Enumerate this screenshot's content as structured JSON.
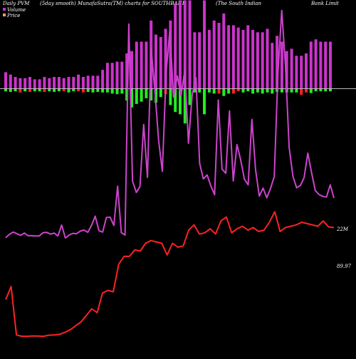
{
  "header": {
    "left": "Daily PVM",
    "smooth": "(5day smooth) MunafaSutra(TM) charts for SOUTHBANK",
    "name_a": "(The South Indian",
    "name_b": "Bank Limit"
  },
  "legend": {
    "volume_label": "Volume",
    "price_label": "Price",
    "volume_color": "#cc33cc",
    "price_color": "#ff9966"
  },
  "colors": {
    "background": "#000000",
    "volume_bar": "#cc33cc",
    "volume_line": "#cc44cc",
    "price_line": "#ff2222",
    "bar_up": "#22ee22",
    "bar_down": "#ff2222",
    "bar_neutral": "#cc33cc",
    "baseline": "#bbbbbb"
  },
  "chart_data": {
    "type": "line",
    "title": "Daily PVM (5day smooth) MunafaSutra(TM) charts for SOUTHBANK (The South Indian Bank Limit",
    "grid": false,
    "legend_position": "top-left",
    "volume_end_label": "22M",
    "price_end_label": "89.97",
    "price_ylim": [
      0,
      125
    ],
    "volume_ylim": [
      0,
      82
    ],
    "series": [
      {
        "name": "Volume",
        "kind": "line",
        "values": [
          10,
          11,
          11.7,
          11.2,
          10.7,
          11.4,
          10.6,
          10.6,
          10.5,
          10.5,
          11.5,
          11.6,
          11.1,
          11.4,
          10.5,
          13.8,
          9.9,
          10.8,
          11.3,
          11.2,
          12.0,
          12.3,
          11.6,
          13.7,
          16.5,
          12.1,
          11.7,
          16.1,
          16.2,
          13.7,
          25.6,
          11.5,
          10.8,
          74.7,
          27.2,
          23.7,
          25.5,
          44.3,
          28.3,
          67.2,
          54.7,
          39.4,
          30.1,
          60.0,
          72.7,
          52.6,
          59.0,
          53.0,
          60.6,
          38.6,
          53.3,
          58.5,
          32.5,
          27.8,
          29.0,
          25.7,
          23.0,
          51.7,
          30.8,
          29.5,
          48.4,
          27.2,
          38.2,
          33.6,
          27.7,
          26.0,
          45.8,
          30.5,
          22.6,
          25.0,
          22.1,
          24.9,
          28.5,
          60.0,
          78.8,
          62.2,
          37.4,
          28.6,
          25.1,
          25.8,
          28.2,
          35.6,
          29.7,
          24.3,
          23.1,
          22.5,
          22.3,
          26.0,
          22.0
        ]
      },
      {
        "name": "Price",
        "kind": "line",
        "values": [
          35,
          45,
          8,
          7,
          7,
          7.3,
          7.2,
          7.0,
          7.8,
          8,
          8.5,
          10,
          12,
          15,
          18,
          23,
          28,
          25,
          40,
          42,
          41,
          62,
          68,
          68,
          73,
          72,
          78,
          80,
          79,
          78,
          69,
          78,
          75,
          76,
          88,
          92,
          85,
          86,
          89,
          85,
          95,
          98,
          86,
          89,
          91,
          88,
          90,
          87,
          88,
          94,
          102,
          87,
          90,
          91,
          92,
          94,
          93,
          92,
          91,
          95,
          90.5,
          89.97
        ]
      },
      {
        "name": "Bars",
        "kind": "bar",
        "values": [
          7,
          6,
          5,
          4.5,
          4.5,
          5,
          4,
          4,
          5,
          4.5,
          5,
          5,
          4.5,
          5,
          5,
          6,
          5,
          5.5,
          5.5,
          5.5,
          8,
          11,
          11,
          11.5,
          11.5,
          15,
          16,
          20,
          20,
          20,
          29,
          23,
          22,
          25.5,
          29,
          36,
          44,
          51,
          70,
          24,
          24,
          72,
          25,
          29,
          28,
          32,
          27,
          27,
          26,
          25,
          27,
          25,
          24,
          24,
          25.5,
          19.5,
          22.5,
          20,
          16,
          17,
          14,
          14,
          15,
          20,
          21,
          20,
          20,
          20
        ],
        "direction": [
          "up",
          "up",
          "up",
          "down",
          "up",
          "down",
          "up",
          "up",
          "down",
          "up",
          "up",
          "up",
          "down",
          "up",
          "up",
          "down",
          "down",
          "up",
          "up",
          "up",
          "up",
          "up",
          "up",
          "up",
          "up",
          "up",
          "up",
          "up",
          "up",
          "up",
          "up",
          "up",
          "up",
          "down",
          "up",
          "up",
          "up",
          "up",
          "up",
          "up",
          "up",
          "up",
          "up",
          "up",
          "down",
          "up",
          "up",
          "down",
          "down",
          "up",
          "up",
          "up",
          "up",
          "up",
          "up",
          "up",
          "up",
          "up",
          "up",
          "up",
          "up",
          "down",
          "down",
          "up",
          "up",
          "up",
          "up",
          "up"
        ],
        "neg": [
          2,
          2.5,
          2,
          3,
          2,
          2.5,
          2,
          2,
          2.5,
          2,
          2.5,
          2,
          2,
          3,
          2,
          2,
          3,
          2.5,
          3,
          2.5,
          3,
          3,
          4,
          4.5,
          4,
          10,
          16,
          13,
          11,
          8,
          10,
          12,
          7,
          4.5,
          14,
          20,
          22,
          30,
          14,
          3,
          3,
          22,
          3,
          4,
          4,
          6,
          4,
          4,
          2,
          3,
          2,
          4,
          3,
          4,
          3,
          4,
          2.5,
          3,
          3,
          3,
          3,
          5,
          3,
          3.5,
          2,
          2,
          2,
          2
        ]
      }
    ]
  }
}
